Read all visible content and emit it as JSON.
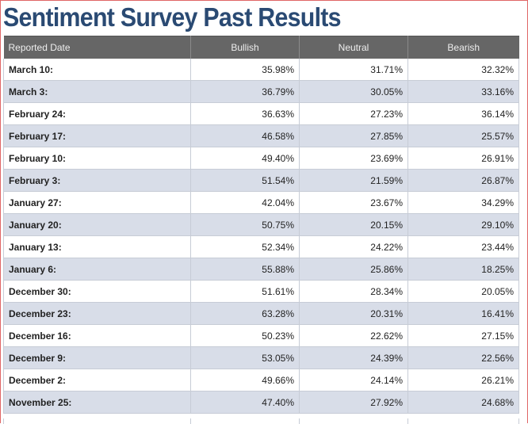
{
  "title": "Sentiment Survey Past Results",
  "table": {
    "headers": [
      "Reported Date",
      "Bullish",
      "Neutral",
      "Bearish"
    ],
    "rows": [
      {
        "date": "March 10:",
        "bullish": "35.98%",
        "neutral": "31.71%",
        "bearish": "32.32%"
      },
      {
        "date": "March 3:",
        "bullish": "36.79%",
        "neutral": "30.05%",
        "bearish": "33.16%"
      },
      {
        "date": "February 24:",
        "bullish": "36.63%",
        "neutral": "27.23%",
        "bearish": "36.14%"
      },
      {
        "date": "February 17:",
        "bullish": "46.58%",
        "neutral": "27.85%",
        "bearish": "25.57%"
      },
      {
        "date": "February 10:",
        "bullish": "49.40%",
        "neutral": "23.69%",
        "bearish": "26.91%"
      },
      {
        "date": "February 3:",
        "bullish": "51.54%",
        "neutral": "21.59%",
        "bearish": "26.87%"
      },
      {
        "date": "January 27:",
        "bullish": "42.04%",
        "neutral": "23.67%",
        "bearish": "34.29%"
      },
      {
        "date": "January 20:",
        "bullish": "50.75%",
        "neutral": "20.15%",
        "bearish": "29.10%"
      },
      {
        "date": "January 13:",
        "bullish": "52.34%",
        "neutral": "24.22%",
        "bearish": "23.44%"
      },
      {
        "date": "January 6:",
        "bullish": "55.88%",
        "neutral": "25.86%",
        "bearish": "18.25%"
      },
      {
        "date": "December 30:",
        "bullish": "51.61%",
        "neutral": "28.34%",
        "bearish": "20.05%"
      },
      {
        "date": "December 23:",
        "bullish": "63.28%",
        "neutral": "20.31%",
        "bearish": "16.41%"
      },
      {
        "date": "December 16:",
        "bullish": "50.23%",
        "neutral": "22.62%",
        "bearish": "27.15%"
      },
      {
        "date": "December 9:",
        "bullish": "53.05%",
        "neutral": "24.39%",
        "bearish": "22.56%"
      },
      {
        "date": "December 2:",
        "bullish": "49.66%",
        "neutral": "24.14%",
        "bearish": "26.21%"
      },
      {
        "date": "November 25:",
        "bullish": "47.40%",
        "neutral": "27.92%",
        "bearish": "24.68%"
      }
    ]
  },
  "colors": {
    "title": "#2a4a73",
    "header_bg": "#666666",
    "row_alt_bg": "#d8dde8",
    "frame_border": "#e06666"
  }
}
